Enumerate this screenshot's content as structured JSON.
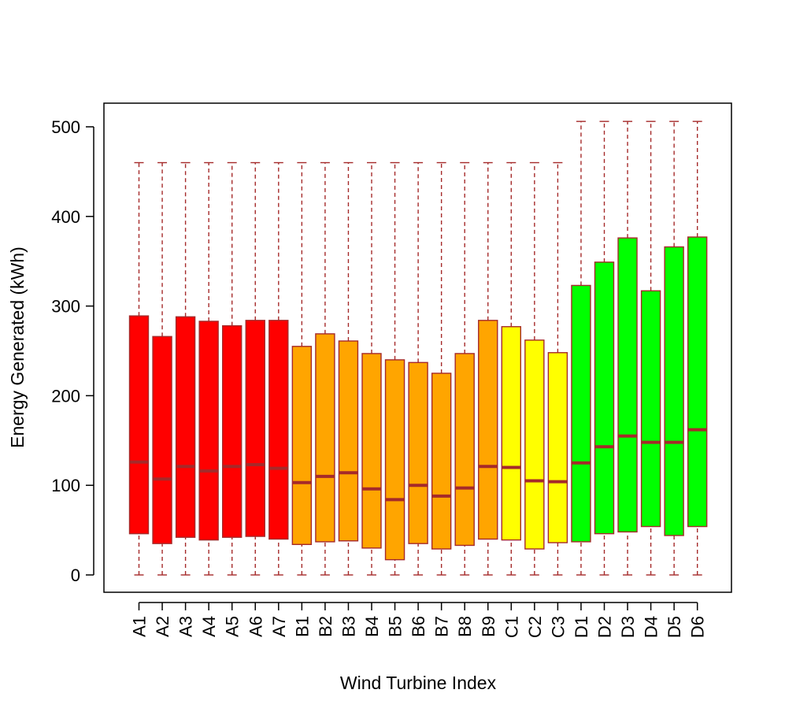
{
  "chart_data": {
    "type": "boxplot",
    "title": "",
    "xlabel": "Wind Turbine Index",
    "ylabel": "Energy Generated (kWh)",
    "ylim": [
      -20,
      527
    ],
    "yticks": [
      0,
      100,
      200,
      300,
      400,
      500
    ],
    "grid": false,
    "legend": "none",
    "colors": {
      "A": "#ff0000",
      "B": "#ffa500",
      "C": "#ffff00",
      "D": "#00ff00",
      "border": "#a52a2a",
      "median": "#a52a2a",
      "axis": "#000000"
    },
    "categories": [
      "A1",
      "A2",
      "A3",
      "A4",
      "A5",
      "A6",
      "A7",
      "B1",
      "B2",
      "B3",
      "B4",
      "B5",
      "B6",
      "B7",
      "B8",
      "B9",
      "C1",
      "C2",
      "C3",
      "D1",
      "D2",
      "D3",
      "D4",
      "D5",
      "D6"
    ],
    "boxes": [
      {
        "label": "A1",
        "group": "A",
        "min": 0,
        "q1": 46,
        "median": 126,
        "q3": 289,
        "max": 460
      },
      {
        "label": "A2",
        "group": "A",
        "min": 0,
        "q1": 35,
        "median": 107,
        "q3": 266,
        "max": 460
      },
      {
        "label": "A3",
        "group": "A",
        "min": 0,
        "q1": 42,
        "median": 121,
        "q3": 288,
        "max": 460
      },
      {
        "label": "A4",
        "group": "A",
        "min": 0,
        "q1": 39,
        "median": 116,
        "q3": 283,
        "max": 460
      },
      {
        "label": "A5",
        "group": "A",
        "min": 0,
        "q1": 42,
        "median": 121,
        "q3": 278,
        "max": 460
      },
      {
        "label": "A6",
        "group": "A",
        "min": 0,
        "q1": 43,
        "median": 123,
        "q3": 284,
        "max": 460
      },
      {
        "label": "A7",
        "group": "A",
        "min": 0,
        "q1": 40,
        "median": 119,
        "q3": 284,
        "max": 460
      },
      {
        "label": "B1",
        "group": "B",
        "min": 0,
        "q1": 34,
        "median": 103,
        "q3": 255,
        "max": 460
      },
      {
        "label": "B2",
        "group": "B",
        "min": 0,
        "q1": 37,
        "median": 110,
        "q3": 269,
        "max": 460
      },
      {
        "label": "B3",
        "group": "B",
        "min": 0,
        "q1": 38,
        "median": 114,
        "q3": 261,
        "max": 460
      },
      {
        "label": "B4",
        "group": "B",
        "min": 0,
        "q1": 30,
        "median": 96,
        "q3": 247,
        "max": 460
      },
      {
        "label": "B5",
        "group": "B",
        "min": 0,
        "q1": 17,
        "median": 84,
        "q3": 240,
        "max": 460
      },
      {
        "label": "B6",
        "group": "B",
        "min": 0,
        "q1": 35,
        "median": 100,
        "q3": 237,
        "max": 460
      },
      {
        "label": "B7",
        "group": "B",
        "min": 0,
        "q1": 29,
        "median": 88,
        "q3": 225,
        "max": 460
      },
      {
        "label": "B8",
        "group": "B",
        "min": 0,
        "q1": 33,
        "median": 97,
        "q3": 247,
        "max": 460
      },
      {
        "label": "B9",
        "group": "B",
        "min": 0,
        "q1": 40,
        "median": 121,
        "q3": 284,
        "max": 460
      },
      {
        "label": "C1",
        "group": "C",
        "min": 0,
        "q1": 39,
        "median": 120,
        "q3": 277,
        "max": 460
      },
      {
        "label": "C2",
        "group": "C",
        "min": 0,
        "q1": 29,
        "median": 105,
        "q3": 262,
        "max": 460
      },
      {
        "label": "C3",
        "group": "C",
        "min": 0,
        "q1": 36,
        "median": 104,
        "q3": 248,
        "max": 460
      },
      {
        "label": "D1",
        "group": "D",
        "min": 0,
        "q1": 37,
        "median": 125,
        "q3": 323,
        "max": 506
      },
      {
        "label": "D2",
        "group": "D",
        "min": 0,
        "q1": 46,
        "median": 143,
        "q3": 349,
        "max": 506
      },
      {
        "label": "D3",
        "group": "D",
        "min": 0,
        "q1": 48,
        "median": 155,
        "q3": 376,
        "max": 506
      },
      {
        "label": "D4",
        "group": "D",
        "min": 0,
        "q1": 54,
        "median": 148,
        "q3": 317,
        "max": 506
      },
      {
        "label": "D5",
        "group": "D",
        "min": 0,
        "q1": 44,
        "median": 148,
        "q3": 366,
        "max": 506
      },
      {
        "label": "D6",
        "group": "D",
        "min": 0,
        "q1": 54,
        "median": 162,
        "q3": 377,
        "max": 506
      }
    ]
  }
}
